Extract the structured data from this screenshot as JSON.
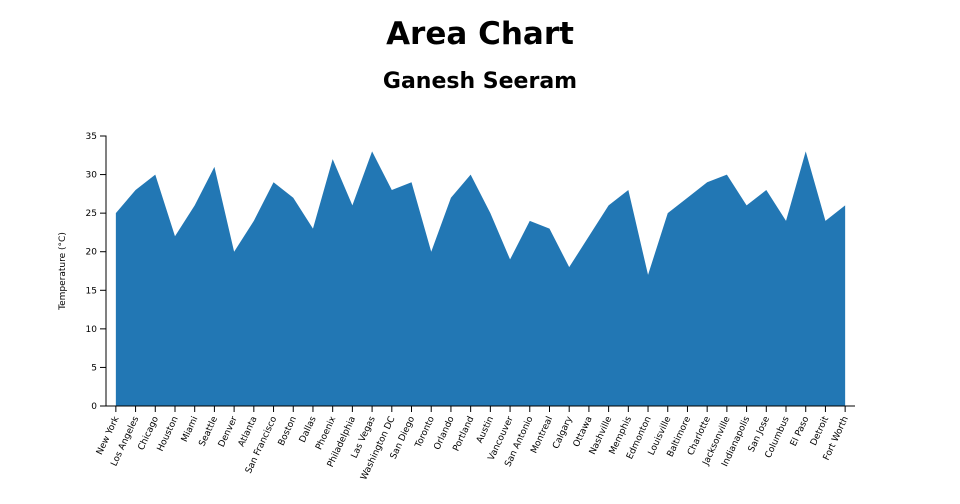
{
  "chart_data": {
    "type": "area",
    "title": "Area Chart",
    "subtitle": "Ganesh Seeram",
    "y_label": "Temperature (°C)",
    "categories": [
      "New York",
      "Los Angeles",
      "Chicago",
      "Houston",
      "Miami",
      "Seattle",
      "Denver",
      "Atlanta",
      "San Francisco",
      "Boston",
      "Dallas",
      "Phoenix",
      "Philadelphia",
      "Las Vegas",
      "Washington DC",
      "San Diego",
      "Toronto",
      "Orlando",
      "Portland",
      "Austin",
      "Vancouver",
      "San Antonio",
      "Montreal",
      "Calgary",
      "Ottawa",
      "Nashville",
      "Memphis",
      "Edmonton",
      "Louisville",
      "Baltimore",
      "Charlotte",
      "Jacksonville",
      "Indianapolis",
      "San Jose",
      "Columbus",
      "El Paso",
      "Detroit",
      "Fort Worth"
    ],
    "values": [
      25,
      28,
      30,
      22,
      26,
      31,
      20,
      24,
      29,
      27,
      23,
      32,
      26,
      33,
      28,
      29,
      20,
      27,
      30,
      25,
      19,
      24,
      23,
      18,
      22,
      26,
      28,
      17,
      25,
      27,
      29,
      30,
      26,
      28,
      24,
      33,
      24,
      26
    ],
    "color": "#2277b4",
    "ylim": [
      0,
      35
    ],
    "yticks": [
      0,
      5,
      10,
      15,
      20,
      25,
      30,
      35
    ]
  }
}
